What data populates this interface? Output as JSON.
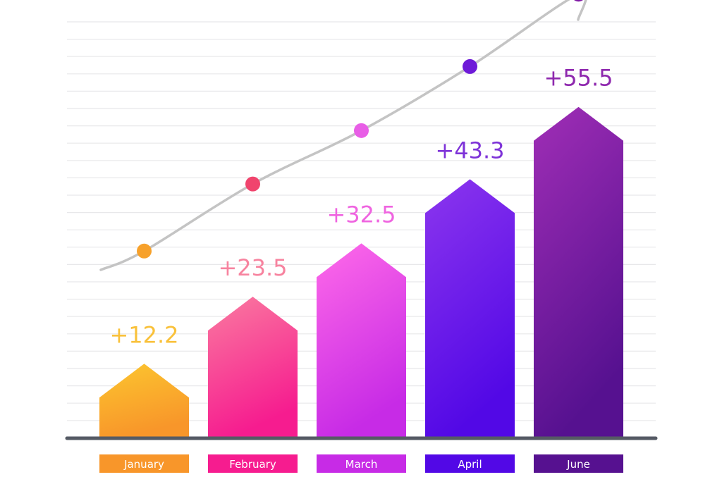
{
  "chart_data": {
    "type": "bar",
    "title": "",
    "xlabel": "",
    "ylabel": "",
    "categories": [
      "January",
      "February",
      "March",
      "April",
      "June"
    ],
    "values": [
      12.2,
      23.5,
      32.5,
      43.3,
      55.5
    ],
    "value_labels": [
      "+12.2",
      "+23.5",
      "+32.5",
      "+43.3",
      "+55.5"
    ],
    "ylim": [
      0,
      60
    ],
    "grid": true,
    "legend": "none",
    "trend_line": true,
    "colors": {
      "January": {
        "top": "#fcc62f",
        "bottom": "#f8962a",
        "label": "#f9c13a",
        "dot": "#f7a12b"
      },
      "February": {
        "top": "#fa7ba0",
        "bottom": "#f61c8f",
        "label": "#f7839f",
        "dot": "#f0446d"
      },
      "March": {
        "top": "#ff6ae8",
        "bottom": "#c72be6",
        "label": "#ef64e0",
        "dot": "#e85ee6"
      },
      "April": {
        "top": "#8c36ee",
        "bottom": "#5208e6",
        "label": "#7e33d8",
        "dot": "#6e1ad8"
      },
      "June": {
        "top": "#a02eb6",
        "bottom": "#561190",
        "label": "#8e28ae",
        "dot": "#811aa6"
      }
    },
    "axis_color": "#555a64",
    "grid_color": "#e8e8ea",
    "trend_color": "#c4c4c4"
  }
}
